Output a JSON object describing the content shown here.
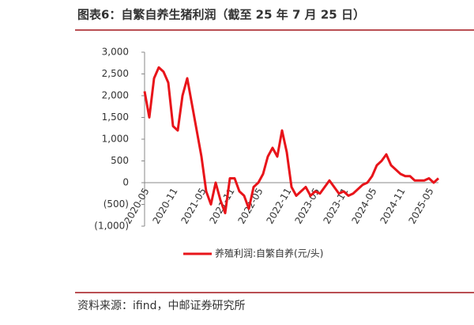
{
  "chart_data": {
    "type": "line",
    "title": "图表6：自繁自养生猪利润（截至 25 年 7 月 25 日）",
    "source": "资料来源：ifind，中邮证券研究所",
    "categories": [
      "2020-05",
      null,
      null,
      null,
      null,
      null,
      "2020-11",
      null,
      null,
      null,
      null,
      null,
      "2021-05",
      null,
      null,
      null,
      null,
      null,
      "2021-11",
      null,
      null,
      null,
      null,
      null,
      "2022-05",
      null,
      null,
      null,
      null,
      null,
      "2022-11",
      null,
      null,
      null,
      null,
      null,
      "2023-05",
      null,
      null,
      null,
      null,
      null,
      "2023-11",
      null,
      null,
      null,
      null,
      null,
      "2024-05",
      null,
      null,
      null,
      null,
      null,
      "2024-11",
      null,
      null,
      null,
      null,
      null,
      "2025-05",
      null,
      null
    ],
    "series": [
      {
        "name": "养殖利润:自繁自养(元/头)",
        "color": "#e8141a",
        "values": [
          2100,
          1500,
          2400,
          2650,
          2550,
          2300,
          1300,
          1200,
          2000,
          2400,
          1800,
          1200,
          600,
          -200,
          -500,
          0,
          -400,
          -700,
          100,
          100,
          -200,
          -300,
          -600,
          -100,
          0,
          200,
          600,
          800,
          600,
          1200,
          700,
          -100,
          -300,
          -200,
          -100,
          -300,
          -200,
          -250,
          -100,
          50,
          -100,
          -250,
          -200,
          -300,
          -250,
          -150,
          -50,
          0,
          150,
          400,
          500,
          650,
          400,
          300,
          200,
          150,
          150,
          50,
          50,
          50,
          100,
          0,
          100
        ]
      }
    ],
    "ylim": [
      -1000,
      3000
    ],
    "yticks": [
      {
        "value": 3000,
        "label": "3,000"
      },
      {
        "value": 2500,
        "label": "2,500"
      },
      {
        "value": 2000,
        "label": "2,000"
      },
      {
        "value": 1500,
        "label": "1,500"
      },
      {
        "value": 1000,
        "label": "1,000"
      },
      500,
      0,
      {
        "value": -500,
        "label": "(500)"
      },
      {
        "value": -1000,
        "label": "(1,000)"
      }
    ],
    "negative_label_color": "#e8141a"
  }
}
